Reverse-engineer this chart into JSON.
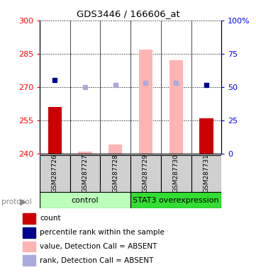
{
  "title": "GDS3446 / 166606_at",
  "samples": [
    "GSM287726",
    "GSM287727",
    "GSM287728",
    "GSM287729",
    "GSM287730",
    "GSM287731"
  ],
  "ylim_left": [
    240,
    300
  ],
  "ylim_right": [
    0,
    100
  ],
  "yticks_left": [
    240,
    255,
    270,
    285,
    300
  ],
  "yticks_right": [
    0,
    25,
    50,
    75,
    100
  ],
  "ytick_labels_right": [
    "0",
    "25",
    "50",
    "75",
    "100%"
  ],
  "red_bars": [
    261,
    null,
    null,
    null,
    null,
    256
  ],
  "pink_bars": [
    null,
    241,
    244,
    287,
    282,
    null
  ],
  "blue_dots": [
    273,
    null,
    null,
    null,
    null,
    271
  ],
  "lightblue_dots": [
    null,
    270,
    271,
    272,
    272,
    null
  ],
  "bar_bottom": 240,
  "control_color": "#bbffbb",
  "stat3_color": "#33dd33",
  "legend_labels": [
    "count",
    "percentile rank within the sample",
    "value, Detection Call = ABSENT",
    "rank, Detection Call = ABSENT"
  ],
  "legend_colors": [
    "#cc0000",
    "#00008b",
    "#ffb3b3",
    "#aaaadd"
  ]
}
